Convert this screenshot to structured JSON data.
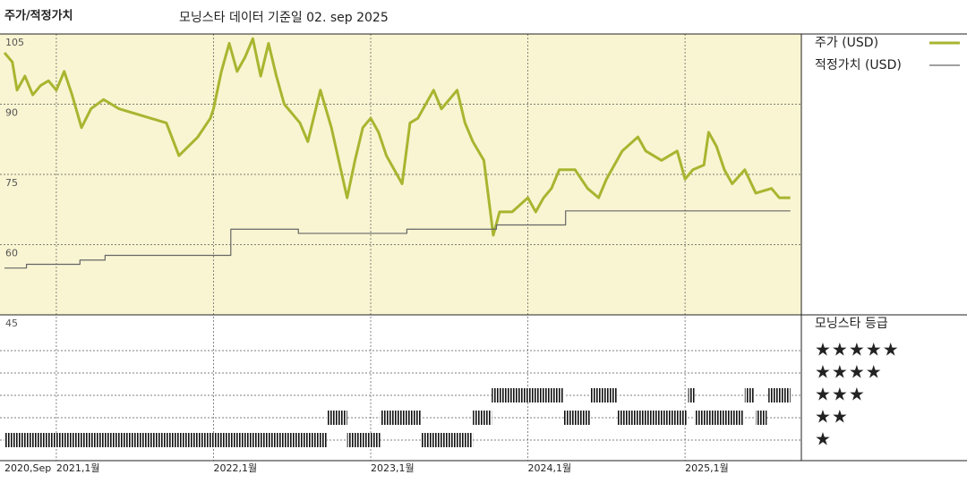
{
  "chart_data": {
    "type": "line",
    "title": "주가/적정가치",
    "subtitle": "모닝스타 데이터 기준일 02. sep 2025",
    "xlim": [
      2020.67,
      2025.74
    ],
    "xticks": [
      {
        "value": 2020.67,
        "label": "2020,Sep"
      },
      {
        "value": 2021,
        "label": "2021,1월"
      },
      {
        "value": 2022,
        "label": "2022,1월"
      },
      {
        "value": 2023,
        "label": "2023,1월"
      },
      {
        "value": 2024,
        "label": "2024,1월"
      },
      {
        "value": 2025,
        "label": "2025,1월"
      }
    ],
    "ylim": [
      45,
      105
    ],
    "yticks": [
      45,
      60,
      75,
      90,
      105
    ],
    "grid": true,
    "series": [
      {
        "name": "주가 (USD)",
        "color": "#a8b530",
        "x": [
          2020.67,
          2020.72,
          2020.75,
          2020.8,
          2020.85,
          2020.9,
          2020.95,
          2021.0,
          2021.05,
          2021.1,
          2021.16,
          2021.22,
          2021.3,
          2021.4,
          2021.5,
          2021.6,
          2021.7,
          2021.78,
          2021.9,
          2021.98,
          2022.0,
          2022.05,
          2022.1,
          2022.15,
          2022.2,
          2022.25,
          2022.3,
          2022.35,
          2022.4,
          2022.45,
          2022.55,
          2022.6,
          2022.68,
          2022.75,
          2022.85,
          2022.9,
          2022.95,
          2023.0,
          2023.05,
          2023.1,
          2023.15,
          2023.2,
          2023.25,
          2023.3,
          2023.4,
          2023.45,
          2023.55,
          2023.6,
          2023.65,
          2023.72,
          2023.78,
          2023.82,
          2023.9,
          2024.0,
          2024.05,
          2024.1,
          2024.15,
          2024.2,
          2024.3,
          2024.38,
          2024.45,
          2024.5,
          2024.6,
          2024.7,
          2024.75,
          2024.85,
          2024.95,
          2025.0,
          2025.05,
          2025.12,
          2025.15,
          2025.2,
          2025.25,
          2025.3,
          2025.38,
          2025.45,
          2025.55,
          2025.6,
          2025.67
        ],
        "values": [
          101,
          99,
          93,
          96,
          92,
          94,
          95,
          93,
          97,
          92,
          85,
          89,
          91,
          89,
          88,
          87,
          86,
          79,
          83,
          87,
          89,
          97,
          103,
          97,
          100,
          104,
          96,
          103,
          96,
          90,
          86,
          82,
          93,
          85,
          70,
          78,
          85,
          87,
          84,
          79,
          76,
          73,
          86,
          87,
          93,
          89,
          93,
          86,
          82,
          78,
          62,
          67,
          67,
          70,
          67,
          70,
          72,
          76,
          76,
          72,
          70,
          74,
          80,
          83,
          80,
          78,
          80,
          74,
          76,
          77,
          84,
          81,
          76,
          73,
          76,
          71,
          72,
          70,
          70
        ]
      },
      {
        "name": "적정가치 (USD)",
        "color": "#666666",
        "step": true,
        "x": [
          2020.67,
          2020.81,
          2021.15,
          2021.31,
          2022.11,
          2022.54,
          2023.23,
          2023.8,
          2024.24,
          2025.67
        ],
        "values": [
          55,
          55.8,
          56.7,
          57.7,
          63.3,
          62.4,
          63.3,
          64.2,
          67.2,
          67.2
        ]
      }
    ],
    "ratings": {
      "title": "모닝스타 등급",
      "levels": [
        {
          "value": 5,
          "label": "★★★★★"
        },
        {
          "value": 4,
          "label": "★★★★"
        },
        {
          "value": 3,
          "label": "★★★"
        },
        {
          "value": 2,
          "label": "★★"
        },
        {
          "value": 1,
          "label": "★"
        }
      ],
      "periods": [
        {
          "start": 2020.67,
          "end": 2022.72,
          "stars": 1
        },
        {
          "start": 2022.72,
          "end": 2022.85,
          "stars": 2
        },
        {
          "start": 2022.85,
          "end": 2023.06,
          "stars": 1
        },
        {
          "start": 2023.06,
          "end": 2023.32,
          "stars": 2
        },
        {
          "start": 2023.32,
          "end": 2023.65,
          "stars": 1
        },
        {
          "start": 2023.65,
          "end": 2023.77,
          "stars": 2
        },
        {
          "start": 2023.77,
          "end": 2024.23,
          "stars": 3
        },
        {
          "start": 2024.23,
          "end": 2024.4,
          "stars": 2
        },
        {
          "start": 2024.4,
          "end": 2024.57,
          "stars": 3
        },
        {
          "start": 2024.57,
          "end": 2025.01,
          "stars": 2
        },
        {
          "start": 2025.02,
          "end": 2025.06,
          "stars": 3
        },
        {
          "start": 2025.06,
          "end": 2025.37,
          "stars": 2
        },
        {
          "start": 2025.38,
          "end": 2025.44,
          "stars": 3
        },
        {
          "start": 2025.45,
          "end": 2025.52,
          "stars": 2
        },
        {
          "start": 2025.53,
          "end": 2025.67,
          "stars": 3
        }
      ]
    }
  }
}
